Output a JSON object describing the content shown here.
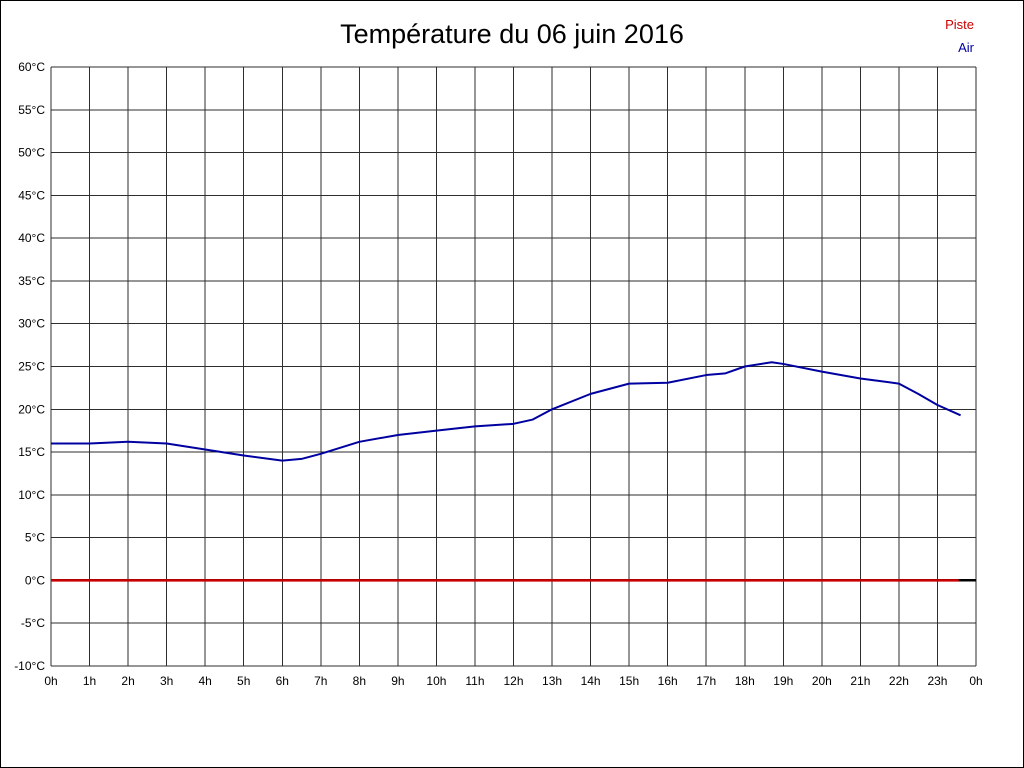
{
  "title": "Température du 06 juin 2016",
  "legend": {
    "piste_label": "Piste",
    "air_label": "Air"
  },
  "chart_data": {
    "type": "line",
    "title": "Température du 06 juin 2016",
    "xlabel": "",
    "ylabel": "",
    "xlim": [
      0,
      24
    ],
    "ylim": [
      -10,
      60
    ],
    "ytick_step": 5,
    "ytick_labels": [
      "60°C",
      "55°C",
      "50°C",
      "45°C",
      "40°C",
      "35°C",
      "30°C",
      "25°C",
      "20°C",
      "15°C",
      "10°C",
      "5°C",
      "0°C",
      "-5°C",
      "-10°C"
    ],
    "xtick_labels": [
      "0h",
      "1h",
      "2h",
      "3h",
      "4h",
      "5h",
      "6h",
      "7h",
      "8h",
      "9h",
      "10h",
      "11h",
      "12h",
      "13h",
      "14h",
      "15h",
      "16h",
      "17h",
      "18h",
      "19h",
      "20h",
      "21h",
      "22h",
      "23h",
      "0h"
    ],
    "grid": true,
    "grid_color": "#2e2e2e",
    "zero_line_color": "#000000",
    "legend_position": "top-right",
    "series": [
      {
        "name": "Piste",
        "color": "#cc0000",
        "x": [
          0,
          23.55
        ],
        "values": [
          0,
          0
        ]
      },
      {
        "name": "Air",
        "color": "#0000a0",
        "x": [
          0,
          1,
          2,
          3,
          4,
          5,
          6,
          6.5,
          7,
          8,
          9,
          10,
          11,
          12,
          12.5,
          13,
          14,
          15,
          16,
          17,
          17.5,
          18,
          18.7,
          19,
          20,
          21,
          21.5,
          22,
          22.5,
          23,
          23.6
        ],
        "values": [
          16,
          16,
          16.2,
          16.0,
          15.3,
          14.6,
          14,
          14.2,
          14.8,
          16.2,
          17,
          17.5,
          18,
          18.3,
          18.8,
          20,
          21.8,
          23,
          23.1,
          24,
          24.2,
          25,
          25.5,
          25.3,
          24.4,
          23.6,
          23.3,
          23,
          21.8,
          20.5,
          19.3
        ]
      }
    ]
  }
}
